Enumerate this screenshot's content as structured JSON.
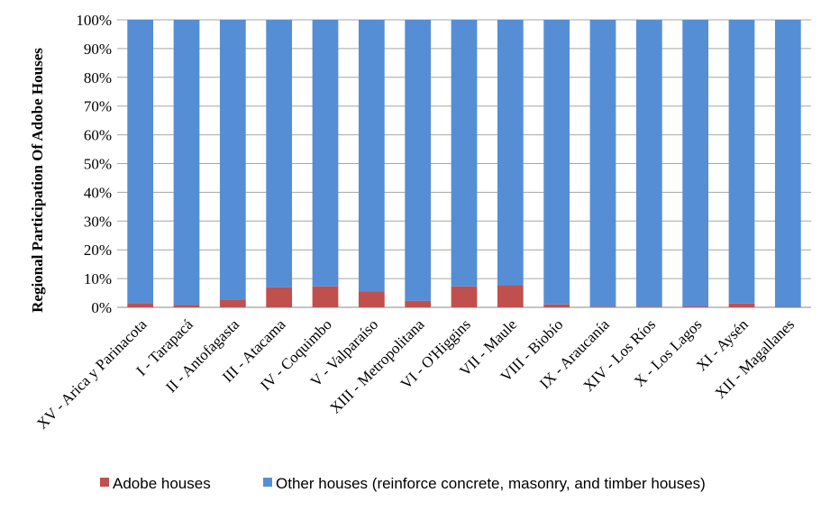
{
  "chart_data": {
    "type": "bar",
    "stacked": "percent",
    "title": "",
    "xlabel": "",
    "ylabel": "Regional Participation Of Adobe Houses",
    "ylim": [
      0,
      100
    ],
    "yticks": [
      "0%",
      "10%",
      "20%",
      "30%",
      "40%",
      "50%",
      "60%",
      "70%",
      "80%",
      "90%",
      "100%"
    ],
    "grid": true,
    "legend": "bottom",
    "categories": [
      "XV - Arica y Parinacota",
      "I - Tarapacá",
      "II - Antofagasta",
      "III - Atacama",
      "IV - Coquimbo",
      "V - Valparaíso",
      "XIII - Metropolitana",
      "VI - O'Higgins",
      "VII - Maule",
      "VIII - Biobío",
      "IX - Araucanía",
      "XIV - Los Ríos",
      "X - Los Lagos",
      "XI - Aysén",
      "XII - Magallanes"
    ],
    "series": [
      {
        "name": "Adobe houses",
        "color": "#c0504d",
        "values": [
          1.5,
          0.8,
          2.7,
          7.0,
          7.3,
          5.5,
          2.3,
          7.3,
          7.7,
          1.0,
          0.2,
          0.2,
          0.3,
          1.3,
          0.1
        ]
      },
      {
        "name": "Other houses (reinforce concrete, masonry, and timber houses)",
        "color": "#558ed5",
        "values": [
          98.5,
          99.2,
          97.3,
          93.0,
          92.7,
          94.5,
          97.7,
          92.7,
          92.3,
          99.0,
          99.8,
          99.8,
          99.7,
          98.7,
          99.9
        ]
      }
    ]
  }
}
